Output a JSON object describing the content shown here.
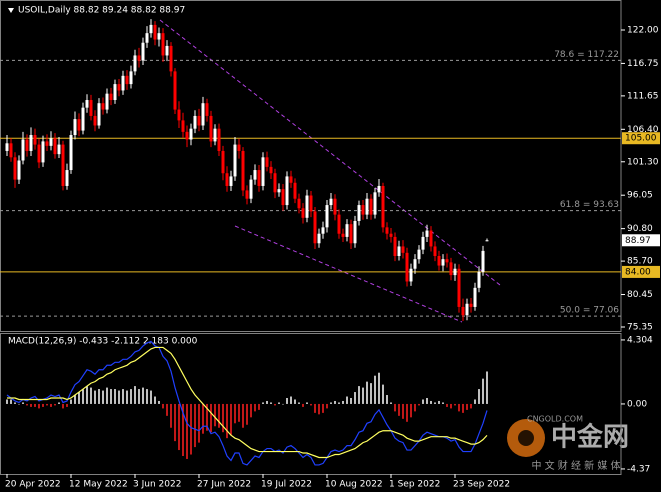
{
  "chart_data": [
    {
      "type": "candlestick",
      "title": "USOIL,Daily  88.82 89.24 88.82 88.97",
      "up_color": "#ffffff",
      "down_color": "#ff0000",
      "ylim": [
        74.72,
        126.71
      ],
      "yticks": [
        {
          "value": 122,
          "label": "122.00"
        },
        {
          "value": 116.75,
          "label": "116.75"
        },
        {
          "value": 111.65,
          "label": "111.65"
        },
        {
          "value": 106.4,
          "label": "106.40"
        },
        {
          "value": 101.3,
          "label": "101.30"
        },
        {
          "value": 96.05,
          "label": "96.05"
        },
        {
          "value": 90.8,
          "label": "90.80"
        },
        {
          "value": 85.7,
          "label": "85.70"
        },
        {
          "value": 80.45,
          "label": "80.45"
        },
        {
          "value": 75.35,
          "label": "75.35"
        }
      ],
      "hlines": [
        {
          "value": 105,
          "label": "105.00"
        },
        {
          "value": 84,
          "label": "84.00"
        }
      ],
      "hline_color": "#e8b923",
      "fib_levels": [
        {
          "value": 117.22,
          "label": "78.6 = 117.22"
        },
        {
          "value": 93.63,
          "label": "61.8 = 93.63"
        },
        {
          "value": 77.06,
          "label": "50.0 = 77.06"
        }
      ],
      "fib_color": "#9a9a9a",
      "current_price": {
        "value": 88.97,
        "label": "88.97"
      },
      "categories": [
        "20 Apr 2022",
        null,
        null,
        null,
        null,
        null,
        null,
        null,
        null,
        null,
        null,
        null,
        null,
        null,
        null,
        null,
        "12 May 2022",
        null,
        null,
        null,
        null,
        null,
        null,
        null,
        null,
        null,
        null,
        null,
        null,
        null,
        null,
        null,
        "3 Jun 2022",
        null,
        null,
        null,
        null,
        null,
        null,
        null,
        null,
        null,
        null,
        null,
        null,
        null,
        null,
        null,
        "27 Jun 2022",
        null,
        null,
        null,
        null,
        null,
        null,
        null,
        null,
        null,
        null,
        null,
        null,
        null,
        null,
        null,
        "19 Jul 2022",
        null,
        null,
        null,
        null,
        null,
        null,
        null,
        null,
        null,
        null,
        null,
        null,
        null,
        null,
        null,
        "10 Aug 2022",
        null,
        null,
        null,
        null,
        null,
        null,
        null,
        null,
        null,
        null,
        null,
        null,
        null,
        null,
        null,
        "1 Sep 2022",
        null,
        null,
        null,
        null,
        null,
        null,
        null,
        null,
        null,
        null,
        null,
        null,
        null,
        null,
        null,
        "23 Sep 2022",
        null,
        null,
        null,
        null,
        null,
        null,
        null,
        null
      ],
      "open": [
        103.0,
        104.2,
        102.0,
        98.5,
        101.5,
        104.8,
        103.0,
        105.5,
        104.0,
        101.2,
        104.5,
        103.8,
        105.0,
        102.5,
        104.0,
        97.5,
        100.0,
        105.5,
        108.0,
        106.2,
        109.8,
        111.0,
        108.5,
        107.0,
        110.5,
        109.5,
        112.0,
        111.0,
        113.5,
        112.5,
        114.8,
        113.5,
        115.5,
        118.0,
        117.2,
        120.0,
        121.5,
        122.8,
        120.5,
        121.5,
        118.0,
        119.5,
        115.5,
        109.5,
        107.8,
        106.0,
        104.8,
        106.5,
        108.5,
        107.0,
        110.5,
        108.5,
        104.5,
        106.5,
        103.0,
        99.5,
        97.5,
        99.0,
        104.0,
        103.0,
        96.8,
        95.5,
        98.5,
        100.0,
        97.5,
        102.0,
        100.5,
        99.5,
        96.5,
        97.0,
        94.5,
        99.0,
        98.0,
        95.5,
        94.0,
        92.5,
        96.0,
        93.5,
        88.5,
        90.0,
        91.0,
        94.5,
        95.5,
        93.0,
        90.0,
        89.5,
        91.5,
        88.5,
        92.0,
        94.5,
        93.0,
        95.5,
        93.0,
        96.5,
        97.5,
        91.0,
        90.0,
        89.5,
        86.5,
        88.0,
        87.0,
        82.5,
        84.5,
        86.0,
        87.5,
        89.5,
        90.5,
        88.0,
        86.5,
        85.0,
        86.0,
        85.5,
        83.5,
        84.5,
        78.5,
        77.2,
        79.0,
        78.5,
        81.5,
        84.0,
        88.82
      ],
      "high": [
        105.5,
        105.0,
        102.8,
        102.3,
        106.0,
        105.6,
        106.7,
        106.5,
        104.9,
        105.4,
        105.6,
        106.1,
        105.8,
        105.2,
        104.6,
        101.0,
        106.2,
        109.2,
        108.9,
        110.6,
        111.9,
        111.8,
        109.4,
        111.3,
        111.4,
        112.8,
        112.9,
        114.2,
        114.3,
        115.6,
        115.7,
        116.4,
        118.9,
        119.2,
        120.8,
        122.6,
        123.7,
        123.4,
        122.4,
        122.3,
        120.4,
        120.1,
        116.0,
        110.8,
        109.0,
        107.0,
        107.3,
        109.4,
        109.6,
        111.5,
        111.2,
        109.3,
        107.2,
        107.3,
        103.8,
        100.6,
        99.9,
        105.2,
        104.9,
        103.6,
        97.6,
        99.2,
        100.9,
        100.8,
        102.8,
        102.9,
        101.4,
        100.2,
        97.9,
        97.8,
        99.8,
        99.9,
        98.7,
        96.3,
        94.8,
        96.9,
        96.7,
        94.2,
        90.8,
        91.9,
        95.3,
        96.4,
        96.2,
        93.8,
        90.8,
        92.3,
        92.2,
        92.8,
        95.2,
        95.3,
        96.4,
        96.2,
        97.2,
        98.6,
        98.0,
        91.8,
        90.9,
        90.2,
        88.9,
        89.0,
        87.8,
        85.3,
        86.8,
        88.2,
        90.3,
        91.4,
        91.2,
        88.8,
        87.3,
        86.8,
        86.9,
        86.2,
        85.3,
        85.2,
        79.8,
        79.8,
        79.9,
        82.3,
        84.9,
        88.1,
        89.24
      ],
      "low": [
        102.2,
        101.3,
        97.2,
        97.8,
        100.9,
        102.1,
        102.2,
        103.2,
        100.3,
        100.5,
        103.0,
        103.1,
        101.8,
        101.9,
        96.8,
        96.9,
        99.4,
        104.8,
        105.3,
        105.6,
        109.0,
        107.8,
        106.1,
        106.5,
        108.7,
        108.9,
        110.2,
        110.4,
        111.6,
        111.8,
        112.6,
        112.8,
        114.9,
        116.1,
        116.5,
        119.2,
        120.8,
        119.6,
        119.4,
        117.0,
        117.1,
        114.7,
        108.8,
        106.6,
        105.1,
        103.6,
        103.9,
        105.8,
        106.1,
        106.3,
        107.6,
        103.6,
        103.9,
        102.2,
        98.4,
        96.6,
        96.7,
        98.3,
        101.8,
        95.9,
        94.6,
        94.8,
        97.7,
        96.6,
        96.8,
        99.8,
        98.6,
        95.6,
        95.8,
        93.6,
        93.8,
        97.2,
        94.8,
        93.2,
        91.6,
        91.8,
        92.6,
        87.6,
        87.8,
        89.2,
        90.2,
        93.8,
        92.1,
        89.2,
        88.7,
        88.8,
        87.6,
        87.8,
        91.3,
        92.2,
        92.3,
        92.2,
        92.4,
        95.8,
        90.2,
        89.1,
        88.6,
        85.7,
        85.8,
        86.1,
        81.7,
        81.8,
        83.7,
        85.3,
        86.8,
        88.7,
        87.2,
        85.7,
        84.2,
        84.1,
        84.7,
        82.7,
        82.6,
        77.6,
        76.3,
        76.4,
        77.6,
        77.9,
        80.8,
        83.4,
        88.82
      ],
      "close": [
        104.2,
        102.0,
        98.5,
        101.5,
        104.8,
        103.0,
        105.5,
        104.0,
        101.2,
        104.5,
        103.8,
        105.0,
        102.5,
        104.0,
        97.5,
        100.0,
        105.5,
        108.0,
        106.2,
        109.8,
        111.0,
        108.5,
        107.0,
        110.5,
        109.5,
        112.0,
        111.0,
        113.5,
        112.5,
        114.8,
        113.5,
        115.5,
        118.0,
        117.2,
        120.0,
        121.5,
        122.8,
        120.5,
        121.5,
        118.0,
        119.5,
        115.5,
        109.5,
        107.8,
        106.0,
        104.8,
        106.5,
        108.5,
        107.0,
        110.5,
        108.5,
        104.5,
        106.5,
        103.0,
        99.5,
        97.5,
        99.0,
        104.0,
        103.0,
        96.8,
        95.5,
        98.5,
        100.0,
        97.5,
        102.0,
        100.5,
        99.5,
        96.5,
        97.0,
        94.5,
        99.0,
        98.0,
        95.5,
        94.0,
        92.5,
        96.0,
        93.5,
        88.5,
        90.0,
        91.0,
        94.5,
        95.5,
        93.0,
        90.0,
        89.5,
        91.5,
        88.5,
        92.0,
        94.5,
        93.0,
        95.5,
        93.0,
        96.5,
        97.5,
        91.0,
        90.0,
        89.5,
        86.5,
        88.0,
        87.0,
        82.5,
        84.5,
        86.0,
        87.5,
        89.5,
        90.5,
        88.0,
        86.5,
        85.0,
        86.0,
        85.5,
        83.5,
        84.5,
        78.5,
        77.2,
        79.0,
        78.5,
        81.5,
        84.0,
        87.3,
        88.97
      ],
      "watermark": {
        "logo": "中金网",
        "site": "CNGOLD.COM",
        "slogan": "中 文 财 经 新 媒 体"
      }
    },
    {
      "type": "macd",
      "title": "MACD(12,26,9) -0.433 -2.112 2.183 0.000",
      "ylim": [
        -4.71,
        4.77
      ],
      "yticks": [
        4.304,
        {
          "value": 0,
          "label": "0.00"
        },
        -4.37
      ],
      "pos_color": "#ffffff",
      "neg_color": "#ff2020",
      "histogram": [
        0.3,
        0.3,
        0.1,
        0.0,
        0.1,
        -0.1,
        -0.2,
        -0.2,
        -0.3,
        -0.2,
        -0.1,
        -0.2,
        -0.1,
        0.1,
        -0.3,
        -0.2,
        0.3,
        0.6,
        0.8,
        1.0,
        1.2,
        1.1,
        0.9,
        1.0,
        0.9,
        1.1,
        1.0,
        1.0,
        0.9,
        1.0,
        0.9,
        1.0,
        1.2,
        1.0,
        1.1,
        1.0,
        0.9,
        0.5,
        0.2,
        -0.3,
        -0.8,
        -1.6,
        -2.5,
        -3.1,
        -3.5,
        -3.7,
        -3.4,
        -2.9,
        -2.6,
        -2.0,
        -1.8,
        -1.9,
        -1.5,
        -1.6,
        -1.9,
        -2.3,
        -2.1,
        -1.3,
        -1.2,
        -1.6,
        -1.4,
        -0.9,
        -0.5,
        -0.4,
        0.1,
        0.2,
        0.1,
        -0.1,
        0.1,
        0.0,
        0.4,
        0.5,
        0.3,
        0.1,
        -0.2,
        0.1,
        -0.1,
        -0.6,
        -0.7,
        -0.6,
        -0.3,
        0.1,
        0.2,
        0.1,
        0.2,
        0.5,
        0.4,
        0.8,
        1.2,
        1.1,
        1.5,
        1.4,
        1.9,
        2.1,
        1.3,
        0.6,
        0.1,
        -0.5,
        -0.8,
        -1.0,
        -1.2,
        -0.9,
        -0.5,
        -0.1,
        0.3,
        0.4,
        0.2,
        0.1,
        0.2,
        0.1,
        -0.2,
        -0.3,
        -0.1,
        -0.5,
        -0.6,
        -0.4,
        -0.3,
        0.3,
        1.0,
        1.7,
        2.183
      ],
      "series": [
        {
          "color": "#2040ff",
          "values": [
            0.6,
            0.4,
            0.2,
            0.1,
            0.3,
            0.2,
            0.4,
            0.5,
            0.2,
            0.3,
            0.4,
            0.6,
            0.5,
            0.6,
            0.1,
            0.2,
            0.8,
            1.3,
            1.5,
            1.9,
            2.3,
            2.2,
            2.0,
            2.3,
            2.3,
            2.6,
            2.6,
            2.8,
            2.8,
            3.0,
            3.0,
            3.2,
            3.5,
            3.6,
            3.9,
            4.1,
            4.2,
            3.9,
            3.8,
            3.2,
            2.9,
            2.2,
            1.1,
            0.2,
            -0.6,
            -1.3,
            -1.6,
            -1.7,
            -1.8,
            -1.5,
            -1.5,
            -2.0,
            -1.9,
            -2.2,
            -2.8,
            -3.5,
            -3.8,
            -3.3,
            -3.3,
            -4.0,
            -4.1,
            -3.8,
            -3.5,
            -3.6,
            -3.2,
            -3.0,
            -3.0,
            -3.2,
            -3.1,
            -3.3,
            -2.9,
            -2.8,
            -3.0,
            -3.3,
            -3.6,
            -3.4,
            -3.6,
            -4.1,
            -4.1,
            -4.0,
            -3.6,
            -3.2,
            -3.1,
            -3.2,
            -3.1,
            -2.8,
            -2.8,
            -2.4,
            -1.9,
            -1.8,
            -1.3,
            -1.2,
            -0.7,
            -0.4,
            -0.9,
            -1.4,
            -1.8,
            -2.3,
            -2.5,
            -2.6,
            -3.1,
            -3.1,
            -2.8,
            -2.5,
            -2.1,
            -1.9,
            -2.0,
            -2.1,
            -2.2,
            -2.2,
            -2.3,
            -2.5,
            -2.4,
            -2.9,
            -3.2,
            -3.2,
            -3.2,
            -2.7,
            -2.0,
            -1.3,
            -0.433
          ]
        },
        {
          "color": "#ffff60",
          "values": [
            0.4,
            0.4,
            0.4,
            0.3,
            0.3,
            0.3,
            0.3,
            0.3,
            0.3,
            0.3,
            0.3,
            0.4,
            0.4,
            0.4,
            0.4,
            0.3,
            0.4,
            0.6,
            0.8,
            1.0,
            1.2,
            1.4,
            1.5,
            1.7,
            1.8,
            2.0,
            2.1,
            2.3,
            2.4,
            2.5,
            2.6,
            2.8,
            2.9,
            3.1,
            3.3,
            3.5,
            3.7,
            3.8,
            3.8,
            3.8,
            3.6,
            3.4,
            3.0,
            2.5,
            2.0,
            1.5,
            1.0,
            0.6,
            0.3,
            0.0,
            -0.3,
            -0.6,
            -0.9,
            -1.2,
            -1.5,
            -1.8,
            -2.1,
            -2.3,
            -2.4,
            -2.6,
            -2.8,
            -3.0,
            -3.1,
            -3.2,
            -3.2,
            -3.2,
            -3.2,
            -3.2,
            -3.2,
            -3.2,
            -3.2,
            -3.2,
            -3.2,
            -3.2,
            -3.3,
            -3.3,
            -3.4,
            -3.5,
            -3.6,
            -3.6,
            -3.6,
            -3.5,
            -3.4,
            -3.4,
            -3.3,
            -3.2,
            -3.1,
            -3.0,
            -2.8,
            -2.6,
            -2.5,
            -2.3,
            -2.1,
            -1.9,
            -1.8,
            -1.8,
            -1.8,
            -1.9,
            -2.0,
            -2.1,
            -2.3,
            -2.4,
            -2.5,
            -2.5,
            -2.4,
            -2.3,
            -2.2,
            -2.2,
            -2.2,
            -2.2,
            -2.2,
            -2.3,
            -2.3,
            -2.4,
            -2.5,
            -2.6,
            -2.7,
            -2.7,
            -2.6,
            -2.4,
            -2.112
          ]
        }
      ]
    }
  ]
}
